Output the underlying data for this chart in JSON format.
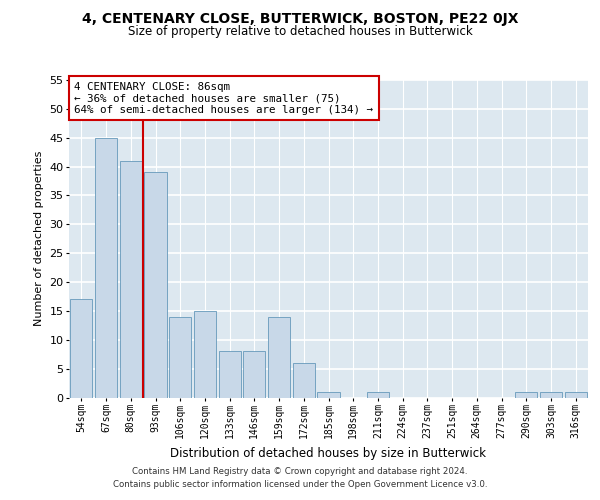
{
  "title": "4, CENTENARY CLOSE, BUTTERWICK, BOSTON, PE22 0JX",
  "subtitle": "Size of property relative to detached houses in Butterwick",
  "xlabel": "Distribution of detached houses by size in Butterwick",
  "ylabel": "Number of detached properties",
  "bar_labels": [
    "54sqm",
    "67sqm",
    "80sqm",
    "93sqm",
    "106sqm",
    "120sqm",
    "133sqm",
    "146sqm",
    "159sqm",
    "172sqm",
    "185sqm",
    "198sqm",
    "211sqm",
    "224sqm",
    "237sqm",
    "251sqm",
    "264sqm",
    "277sqm",
    "290sqm",
    "303sqm",
    "316sqm"
  ],
  "bar_values": [
    17,
    45,
    41,
    39,
    14,
    15,
    8,
    8,
    14,
    6,
    1,
    0,
    1,
    0,
    0,
    0,
    0,
    0,
    1,
    1,
    1
  ],
  "bar_color": "#c8d8e8",
  "bar_edgecolor": "#6699bb",
  "background_color": "#dde8f0",
  "grid_color": "#ffffff",
  "vline_color": "#cc0000",
  "annotation_title": "4 CENTENARY CLOSE: 86sqm",
  "annotation_line1": "← 36% of detached houses are smaller (75)",
  "annotation_line2": "64% of semi-detached houses are larger (134) →",
  "annotation_box_color": "#ffffff",
  "annotation_border_color": "#cc0000",
  "ylim": [
    0,
    55
  ],
  "yticks": [
    0,
    5,
    10,
    15,
    20,
    25,
    30,
    35,
    40,
    45,
    50,
    55
  ],
  "footer1": "Contains HM Land Registry data © Crown copyright and database right 2024.",
  "footer2": "Contains public sector information licensed under the Open Government Licence v3.0."
}
